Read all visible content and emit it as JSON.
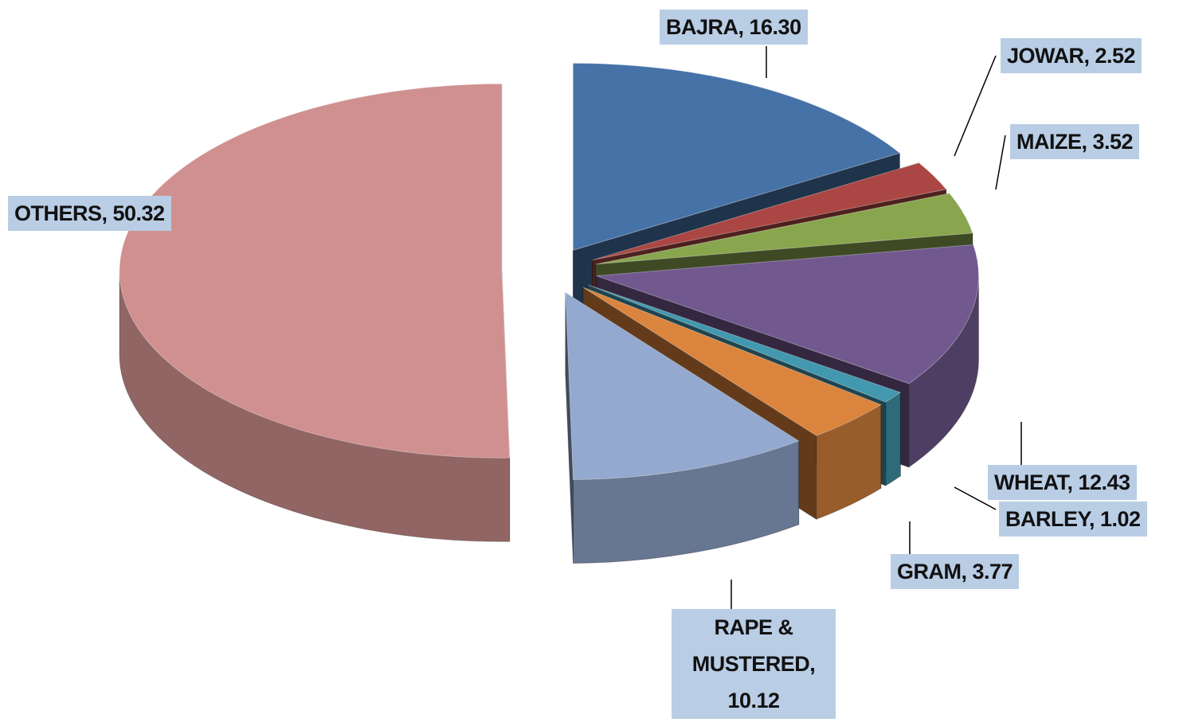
{
  "chart_data": {
    "type": "pie",
    "values": [
      16.3,
      2.52,
      3.52,
      12.43,
      1.02,
      3.77,
      10.12,
      50.32
    ],
    "value_labels": [
      "BAJRA, 16.30",
      "JOWAR, 2.52",
      "MAIZE, 3.52",
      "WHEAT, 12.43",
      "BARLEY, 1.02",
      "GRAM, 3.77",
      "RAPE & MUSTERED, 10.12",
      "OTHERS, 50.32"
    ],
    "colors": [
      "#4572a7",
      "#aa4643",
      "#89a54e",
      "#71588f",
      "#4198af",
      "#db843d",
      "#93a9cf",
      "#d09090"
    ]
  }
}
